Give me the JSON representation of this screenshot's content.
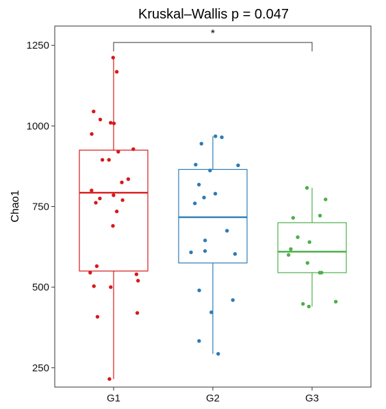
{
  "chart_data": {
    "type": "box",
    "title": "Kruskal–Wallis   p = 0.047",
    "ylabel": "Chao1",
    "xlabel": "",
    "ylim": [
      190,
      1310
    ],
    "yticks": [
      250,
      500,
      750,
      1000,
      1250
    ],
    "ytick_labels": [
      "250",
      "500",
      "750",
      "1000",
      "1250"
    ],
    "grid": false,
    "legend": "none",
    "significance": {
      "from": "G1",
      "to": "G3",
      "label": "*"
    },
    "groups": [
      {
        "name": "G1",
        "color": "#d7191c",
        "box": {
          "whisker_low": 215,
          "q1": 550,
          "median": 793,
          "q3": 925,
          "whisker_high": 1212
        },
        "points": [
          1212,
          1168,
          1045,
          1020,
          1010,
          1008,
          975,
          928,
          920,
          895,
          895,
          835,
          825,
          800,
          785,
          775,
          770,
          762,
          735,
          690,
          565,
          545,
          540,
          520,
          503,
          500,
          420,
          408,
          215
        ]
      },
      {
        "name": "G2",
        "color": "#2c7bb6",
        "box": {
          "whisker_low": 293,
          "q1": 575,
          "median": 717,
          "q3": 865,
          "whisker_high": 968
        },
        "points": [
          968,
          965,
          945,
          880,
          878,
          862,
          818,
          790,
          778,
          760,
          675,
          645,
          612,
          608,
          603,
          490,
          460,
          422,
          333,
          293
        ]
      },
      {
        "name": "G3",
        "color": "#4daf4a",
        "box": {
          "whisker_low": 440,
          "q1": 545,
          "median": 610,
          "q3": 700,
          "whisker_high": 808
        },
        "points": [
          808,
          772,
          722,
          715,
          655,
          640,
          618,
          600,
          575,
          545,
          545,
          455,
          448,
          440
        ]
      }
    ]
  }
}
